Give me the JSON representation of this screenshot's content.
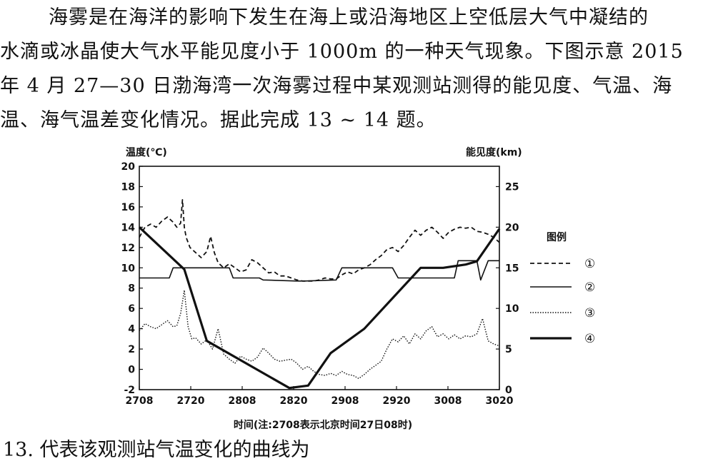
{
  "passage": {
    "lines": [
      "海雾是在海洋的影响下发生在海上或沿海地区上空低层大气中凝结的",
      "水滴或冰晶使大气水平能见度小于 1000m 的一种天气现象。下图示意 2015",
      "年 4 月 27—30 日渤海湾一次海雾过程中某观测站测得的能见度、气温、海",
      "温、海气温差变化情况。据此完成 13 ~ 14 题。"
    ]
  },
  "question": "13. 代表该观测站气温变化的曲线为",
  "chart_data": {
    "type": "line",
    "left_axis_title": "温度(℃)",
    "right_axis_title": "能见度(km)",
    "xlabel": "时间(注:2708表示北京时间27日08时)",
    "x_ticks": [
      "2708",
      "2720",
      "2808",
      "2820",
      "2908",
      "2920",
      "3008",
      "3020"
    ],
    "y_left_ticks": [
      "-2",
      "0",
      "2",
      "4",
      "6",
      "8",
      "10",
      "12",
      "14",
      "16",
      "18",
      "20"
    ],
    "y_left_range": [
      -2,
      20
    ],
    "y_right_ticks": [
      "0",
      "5",
      "10",
      "15",
      "20",
      "25"
    ],
    "y_right_range": [
      0,
      27.5
    ],
    "legend_title": "图例",
    "legend": [
      {
        "label": "①",
        "style": "dashed"
      },
      {
        "label": "②",
        "style": "thin-solid"
      },
      {
        "label": "③",
        "style": "dotted"
      },
      {
        "label": "④",
        "style": "thick-solid"
      }
    ],
    "series": [
      {
        "name": "①",
        "axis": "left",
        "style": "dashed",
        "x": [
          0,
          3,
          6,
          9,
          12,
          15,
          18,
          20,
          22,
          23,
          24,
          25,
          27,
          30,
          33,
          36,
          38,
          40,
          42,
          45,
          48,
          51,
          54,
          57,
          60,
          63,
          66,
          69,
          72,
          75,
          78,
          81,
          84,
          87,
          90,
          93,
          96,
          99,
          102,
          105,
          108,
          111,
          114,
          117,
          120,
          123,
          126,
          129,
          132,
          135,
          138,
          141,
          144,
          147,
          150,
          153,
          156,
          159,
          162,
          165,
          168,
          171,
          174,
          177,
          180,
          183,
          186,
          189,
          192
        ],
        "y": [
          13.0,
          14.0,
          14.3,
          14.0,
          14.6,
          15.0,
          14.5,
          14.0,
          14.4,
          16.7,
          14.0,
          13.0,
          12.0,
          11.5,
          11.0,
          11.6,
          13.1,
          11.5,
          10.5,
          10.0,
          10.4,
          10.0,
          9.6,
          9.8,
          10.8,
          10.5,
          10.0,
          9.5,
          9.6,
          9.2,
          9.2,
          9.0,
          8.8,
          8.7,
          8.7,
          8.7,
          8.8,
          9.0,
          8.9,
          8.9,
          9.3,
          9.6,
          9.4,
          9.8,
          10.0,
          10.3,
          10.8,
          11.2,
          11.8,
          12.0,
          11.6,
          12.2,
          13.0,
          13.7,
          13.2,
          13.7,
          14.0,
          13.5,
          12.9,
          13.5,
          13.8,
          14.0,
          13.9,
          14.0,
          13.6,
          13.5,
          13.3,
          13.0,
          12.5
        ]
      },
      {
        "name": "②",
        "axis": "left",
        "style": "thin-solid",
        "x": [
          0,
          16,
          18,
          48,
          50,
          64,
          66,
          84,
          88,
          105,
          108,
          135,
          138,
          168,
          170,
          180,
          182,
          186,
          190,
          192
        ],
        "y": [
          9.0,
          9.0,
          10.0,
          10.0,
          9.0,
          9.0,
          8.8,
          8.7,
          8.7,
          8.8,
          10.0,
          10.0,
          9.0,
          9.0,
          10.7,
          10.7,
          8.8,
          10.7,
          10.7,
          10.7
        ]
      },
      {
        "name": "③",
        "axis": "left",
        "style": "dotted",
        "x": [
          0,
          3,
          6,
          9,
          12,
          15,
          18,
          20,
          22,
          24,
          25,
          26,
          28,
          30,
          33,
          36,
          39,
          42,
          45,
          48,
          51,
          54,
          57,
          60,
          63,
          66,
          69,
          72,
          75,
          78,
          81,
          84,
          87,
          90,
          93,
          96,
          99,
          102,
          105,
          108,
          111,
          114,
          117,
          120,
          123,
          126,
          129,
          132,
          135,
          138,
          141,
          144,
          147,
          150,
          153,
          156,
          159,
          162,
          165,
          168,
          171,
          174,
          177,
          180,
          183,
          186,
          189,
          192
        ],
        "y": [
          3.8,
          4.5,
          4.2,
          4.0,
          4.4,
          4.8,
          4.2,
          4.3,
          5.5,
          7.8,
          6.0,
          4.2,
          3.0,
          3.1,
          2.5,
          2.9,
          2.0,
          4.0,
          1.5,
          1.0,
          0.6,
          1.3,
          1.0,
          0.8,
          1.2,
          2.1,
          1.6,
          1.0,
          0.8,
          0.9,
          1.0,
          0.6,
          0.0,
          0.3,
          -0.2,
          -0.5,
          -0.6,
          -0.4,
          -0.6,
          -0.2,
          -0.5,
          -0.6,
          -0.9,
          -0.5,
          0.0,
          0.4,
          0.8,
          2.0,
          3.0,
          2.7,
          3.3,
          2.5,
          3.5,
          3.0,
          3.8,
          4.2,
          3.2,
          3.5,
          3.0,
          3.4,
          3.0,
          3.3,
          3.2,
          3.5,
          5.0,
          2.8,
          2.5,
          2.3
        ]
      },
      {
        "name": "④",
        "axis": "right",
        "style": "thick-solid",
        "x": [
          0,
          24,
          36,
          80,
          90,
          102,
          120,
          150,
          162,
          168,
          174,
          180,
          192
        ],
        "y": [
          20.0,
          14.8,
          6.0,
          0.2,
          0.5,
          4.5,
          7.5,
          15.0,
          15.0,
          15.2,
          15.4,
          15.8,
          19.8
        ]
      }
    ]
  }
}
